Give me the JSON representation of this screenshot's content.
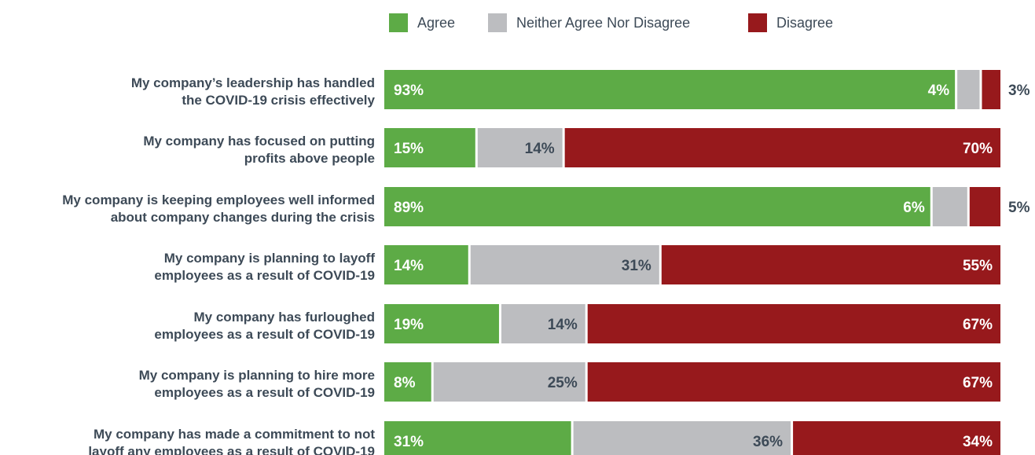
{
  "colors": {
    "agree": "#5dab46",
    "neither": "#bcbdc0",
    "disagree": "#97191c",
    "label_text": "#3d4a57",
    "value_on_color": "#ffffff"
  },
  "chart_data": {
    "type": "bar",
    "orientation": "horizontal",
    "stacked": true,
    "legend_position": "top",
    "grid": false,
    "xlim": [
      0,
      100
    ],
    "categories": [
      [
        "My company’s leadership has handled",
        "the COVID-19 crisis effectively"
      ],
      [
        "My company has focused on putting",
        "profits above people"
      ],
      [
        "My company is keeping employees well informed",
        "about company changes during the crisis"
      ],
      [
        "My company is planning to layoff",
        "employees as a result of COVID-19"
      ],
      [
        "My company has furloughed",
        "employees as a result of COVID-19"
      ],
      [
        "My company is planning to hire more",
        "employees as a result of COVID-19"
      ],
      [
        "My company has made a commitment to not",
        "layoff any employees as a result of COVID-19"
      ]
    ],
    "series": [
      {
        "name": "Agree",
        "color": "#5dab46",
        "values": [
          93,
          15,
          89,
          14,
          19,
          8,
          31
        ],
        "labels": [
          "93%",
          "15%",
          "89%",
          "14%",
          "19%",
          "8%",
          "31%"
        ]
      },
      {
        "name": "Neither Agree Nor Disagree",
        "color": "#bcbdc0",
        "values": [
          4,
          14,
          6,
          31,
          14,
          25,
          36
        ],
        "labels": [
          "4%",
          "14%",
          "6%",
          "31%",
          "14%",
          "25%",
          "36%"
        ]
      },
      {
        "name": "Disagree",
        "color": "#97191c",
        "values": [
          3,
          70,
          5,
          55,
          67,
          67,
          34
        ],
        "labels": [
          "3%",
          "70%",
          "5%",
          "55%",
          "67%",
          "67%",
          "34%"
        ]
      }
    ]
  }
}
